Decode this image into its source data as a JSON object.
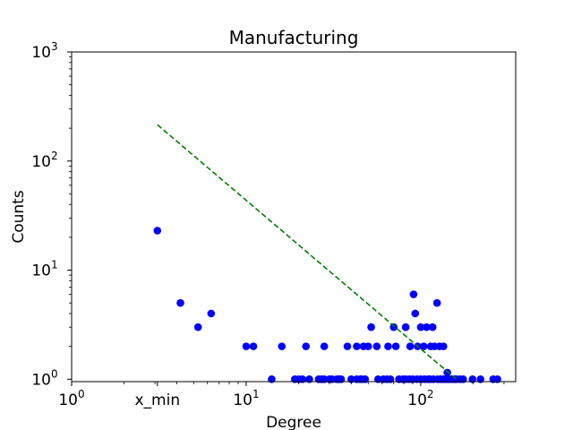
{
  "chart_data": {
    "type": "scatter",
    "title": "Manufacturing",
    "xlabel": "Degree",
    "ylabel": "Counts",
    "xscale": "log",
    "yscale": "log",
    "xlim": [
      1,
      350
    ],
    "ylim": [
      0.95,
      1000
    ],
    "grid": false,
    "point_color": "#0000ff",
    "fit_line_color": "#008000",
    "x_ticks": [
      {
        "value": 1,
        "base": "10",
        "exp": "0"
      },
      {
        "value": 10,
        "base": "10",
        "exp": "1"
      },
      {
        "value": 100,
        "base": "10",
        "exp": "2"
      }
    ],
    "x_tick_extra": {
      "value": 3.1,
      "label": "x_min"
    },
    "y_ticks": [
      {
        "value": 1,
        "base": "10",
        "exp": "0"
      },
      {
        "value": 10,
        "base": "10",
        "exp": "1"
      },
      {
        "value": 100,
        "base": "10",
        "exp": "2"
      },
      {
        "value": 1000,
        "base": "10",
        "exp": "3"
      }
    ],
    "series": [
      {
        "kind": "points",
        "points": [
          [
            3.1,
            23
          ],
          [
            4.2,
            5
          ],
          [
            5.3,
            3
          ],
          [
            6.3,
            4
          ],
          [
            10,
            2
          ],
          [
            11,
            2
          ],
          [
            16,
            2
          ],
          [
            22,
            2
          ],
          [
            28,
            2
          ],
          [
            38,
            2
          ],
          [
            43,
            2
          ],
          [
            47,
            2
          ],
          [
            50,
            2
          ],
          [
            52,
            3
          ],
          [
            56,
            2
          ],
          [
            65,
            2
          ],
          [
            70,
            3
          ],
          [
            72,
            2
          ],
          [
            82,
            3
          ],
          [
            87,
            2
          ],
          [
            91,
            6
          ],
          [
            93,
            4
          ],
          [
            96,
            2
          ],
          [
            100,
            3
          ],
          [
            104,
            2
          ],
          [
            108,
            3
          ],
          [
            114,
            2
          ],
          [
            117,
            3
          ],
          [
            120,
            2
          ],
          [
            124,
            5
          ],
          [
            128,
            2
          ],
          [
            135,
            2
          ],
          [
            142,
            1.15
          ],
          [
            14,
            1
          ],
          [
            19,
            1
          ],
          [
            20,
            1
          ],
          [
            21,
            1
          ],
          [
            23,
            1
          ],
          [
            26,
            1
          ],
          [
            27,
            1
          ],
          [
            28,
            1
          ],
          [
            30,
            1
          ],
          [
            31,
            1
          ],
          [
            33,
            1
          ],
          [
            34,
            1
          ],
          [
            35,
            1
          ],
          [
            40,
            1
          ],
          [
            43,
            1
          ],
          [
            45,
            1
          ],
          [
            46,
            1
          ],
          [
            48,
            1
          ],
          [
            57,
            1
          ],
          [
            61,
            1
          ],
          [
            64,
            1
          ],
          [
            67,
            1
          ],
          [
            75,
            1
          ],
          [
            79,
            1
          ],
          [
            82,
            1
          ],
          [
            86,
            1
          ],
          [
            90,
            1
          ],
          [
            95,
            1
          ],
          [
            100,
            1
          ],
          [
            105,
            1
          ],
          [
            110,
            1
          ],
          [
            113,
            1
          ],
          [
            118,
            1
          ],
          [
            125,
            1
          ],
          [
            130,
            1
          ],
          [
            135,
            1
          ],
          [
            140,
            1
          ],
          [
            145,
            1
          ],
          [
            150,
            1
          ],
          [
            156,
            1
          ],
          [
            160,
            1
          ],
          [
            168,
            1
          ],
          [
            175,
            1
          ],
          [
            198,
            1
          ],
          [
            220,
            1
          ],
          [
            260,
            1
          ],
          [
            275,
            1
          ]
        ]
      },
      {
        "kind": "fit-line",
        "style": "dashed",
        "points": [
          [
            3.1,
            215
          ],
          [
            160,
            1
          ]
        ]
      }
    ]
  }
}
